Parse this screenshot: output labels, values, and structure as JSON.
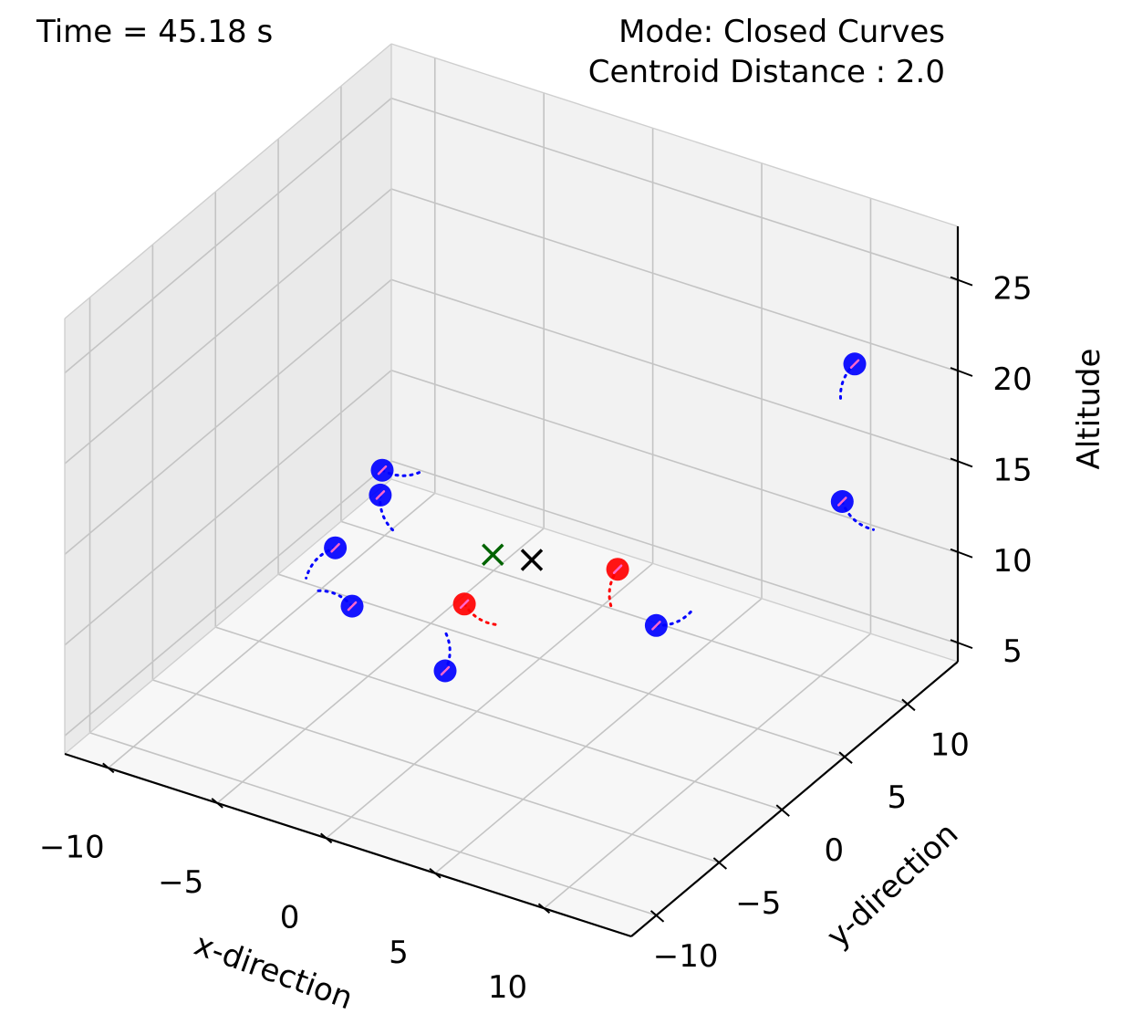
{
  "header": {
    "time_text": "Time = 45.18 s",
    "mode_text": "Mode: Closed Curves",
    "centroid_text": "Centroid Distance : 2.0"
  },
  "chart_data": {
    "type": "scatter",
    "projection": "3d",
    "grid": true,
    "xlabel": "x-direction",
    "ylabel": "y-direction",
    "zlabel": "Altitude",
    "xlim": [
      -12,
      14
    ],
    "ylim": [
      -12,
      14
    ],
    "zlim": [
      4,
      28
    ],
    "xticks": [
      -10,
      -5,
      0,
      5,
      10
    ],
    "yticks": [
      -10,
      -5,
      0,
      5,
      10
    ],
    "zticks": [
      5,
      10,
      15,
      20,
      25
    ],
    "xtick_labels": [
      "−10",
      "−5",
      "0",
      "5",
      "10"
    ],
    "ytick_labels": [
      "−10",
      "−5",
      "0",
      "5",
      "10"
    ],
    "ztick_labels": [
      "5",
      "10",
      "15",
      "20",
      "25"
    ],
    "colors": {
      "blue_agent": "#0000ff",
      "red_agent": "#ff0000",
      "goal_centroid": "#006400",
      "current_centroid": "#000000"
    },
    "series": [
      {
        "color": "blue",
        "points": [
          {
            "x": -5.5,
            "y": 2.0,
            "z": 14.0
          },
          {
            "x": -5.3,
            "y": 1.5,
            "z": 13.0
          },
          {
            "x": -6.5,
            "y": 0.0,
            "z": 10.5
          },
          {
            "x": -4.0,
            "y": -3.0,
            "z": 10.0
          },
          {
            "x": 2.0,
            "y": -6.0,
            "z": 10.5
          },
          {
            "x": 6.5,
            "y": 3.0,
            "z": 9.5
          },
          {
            "x": 11.0,
            "y": 10.0,
            "z": 14.0
          },
          {
            "x": 11.0,
            "y": 11.0,
            "z": 21.0
          }
        ]
      },
      {
        "color": "red",
        "points": [
          {
            "x": 0.0,
            "y": -1.0,
            "z": 10.5
          },
          {
            "x": 3.0,
            "y": 6.0,
            "z": 9.5
          }
        ]
      }
    ],
    "markers": [
      {
        "marker": "x",
        "color": "green",
        "x": -1.0,
        "y": 3.0,
        "z": 10.5
      },
      {
        "marker": "x",
        "color": "black",
        "x": 0.5,
        "y": 3.5,
        "z": 10.5
      }
    ]
  }
}
